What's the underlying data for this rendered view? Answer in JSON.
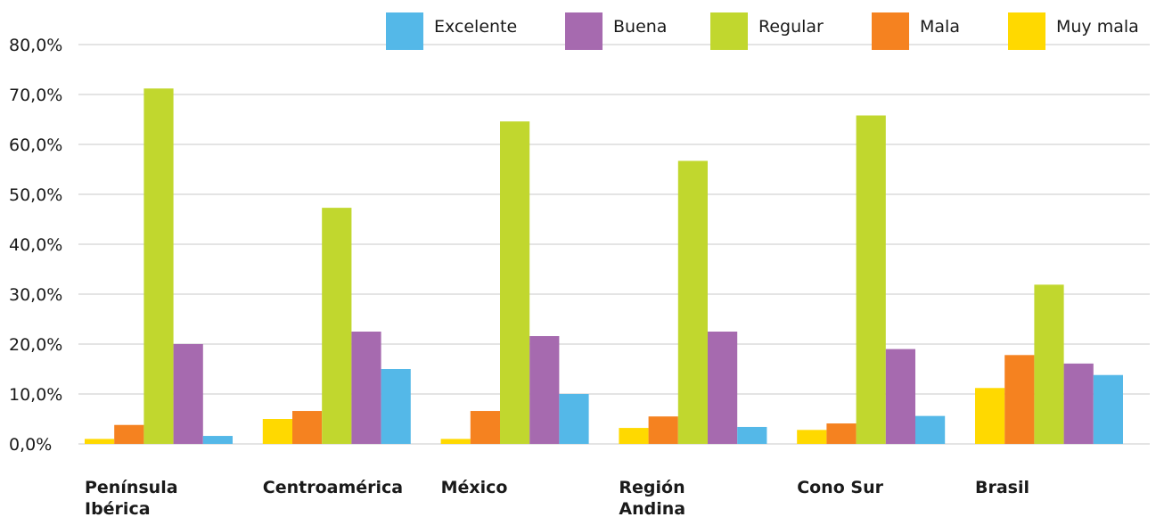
{
  "chart_data": {
    "type": "bar",
    "title": "",
    "xlabel": "",
    "ylabel": "",
    "ylim": [
      0,
      80
    ],
    "y_ticks": [
      "0,0%",
      "10,0%",
      "20,0%",
      "30,0%",
      "40,0%",
      "50,0%",
      "60,0%",
      "70,0%",
      "80,0%"
    ],
    "grid": true,
    "legend_position": "top-right",
    "categories": [
      [
        "Península",
        "Ibérica"
      ],
      [
        "Centroamérica"
      ],
      [
        "México"
      ],
      [
        "Región",
        "Andina"
      ],
      [
        "Cono Sur"
      ],
      [
        "Brasil"
      ]
    ],
    "series": [
      {
        "name": "Muy mala",
        "color": "#FFD900",
        "values": [
          1.0,
          5.0,
          1.0,
          3.2,
          2.8,
          11.2
        ]
      },
      {
        "name": "Mala",
        "color": "#F58220",
        "values": [
          3.8,
          6.6,
          6.6,
          5.5,
          4.1,
          17.8
        ]
      },
      {
        "name": "Regular",
        "color": "#C1D72E",
        "values": [
          71.2,
          47.3,
          64.6,
          56.7,
          65.8,
          31.9
        ]
      },
      {
        "name": "Buena",
        "color": "#A66AAF",
        "values": [
          20.0,
          22.5,
          21.6,
          22.5,
          19.0,
          16.1
        ]
      },
      {
        "name": "Excelente",
        "color": "#54B8E8",
        "values": [
          1.6,
          15.0,
          10.0,
          3.4,
          5.6,
          13.8
        ]
      }
    ],
    "legend_order": [
      "Excelente",
      "Buena",
      "Regular",
      "Mala",
      "Muy mala"
    ]
  }
}
